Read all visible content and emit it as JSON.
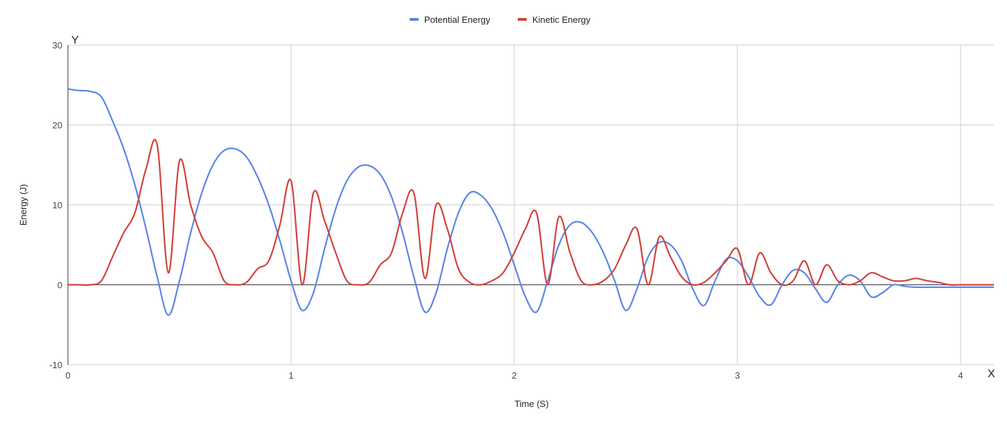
{
  "chart_data": {
    "type": "line",
    "title": "",
    "xlabel": "Time (S)",
    "ylabel": "Energy (J)",
    "x_axis_letter": "X",
    "y_axis_letter": "Y",
    "xlim": [
      0,
      4.15
    ],
    "ylim": [
      -10,
      30
    ],
    "xticks": [
      0,
      1,
      2,
      3,
      4
    ],
    "yticks": [
      -10,
      0,
      10,
      20,
      30
    ],
    "grid": true,
    "legend_position": "top-center",
    "series": [
      {
        "name": "Potential Energy",
        "color": "#5b84e4",
        "x": [
          0,
          0.05,
          0.1,
          0.15,
          0.2,
          0.25,
          0.3,
          0.35,
          0.4,
          0.45,
          0.5,
          0.55,
          0.6,
          0.65,
          0.7,
          0.75,
          0.8,
          0.85,
          0.9,
          0.95,
          1.0,
          1.05,
          1.1,
          1.15,
          1.2,
          1.25,
          1.3,
          1.35,
          1.4,
          1.45,
          1.5,
          1.55,
          1.6,
          1.65,
          1.7,
          1.75,
          1.8,
          1.85,
          1.9,
          1.95,
          2.0,
          2.05,
          2.1,
          2.15,
          2.2,
          2.25,
          2.3,
          2.35,
          2.4,
          2.45,
          2.5,
          2.55,
          2.6,
          2.65,
          2.7,
          2.75,
          2.8,
          2.85,
          2.9,
          2.95,
          3.0,
          3.05,
          3.1,
          3.15,
          3.2,
          3.25,
          3.3,
          3.35,
          3.4,
          3.45,
          3.5,
          3.55,
          3.6,
          3.65,
          3.7,
          3.75,
          3.8,
          3.85,
          3.9,
          3.95,
          4.0,
          4.05,
          4.1,
          4.15
        ],
        "y": [
          24.5,
          24.3,
          24.2,
          23.5,
          20.5,
          17.0,
          12.5,
          7.0,
          1.0,
          -3.8,
          0.5,
          6.5,
          11.5,
          15.0,
          16.8,
          17.0,
          16.0,
          13.5,
          10.0,
          5.5,
          0.5,
          -3.2,
          -1.0,
          4.5,
          9.5,
          13.0,
          14.7,
          14.9,
          13.8,
          11.0,
          6.5,
          1.0,
          -3.4,
          -1.0,
          4.5,
          9.0,
          11.5,
          11.2,
          9.5,
          6.5,
          2.5,
          -1.5,
          -3.4,
          0.5,
          5.0,
          7.5,
          7.8,
          6.5,
          4.0,
          0.5,
          -3.2,
          -0.5,
          3.5,
          5.3,
          5.0,
          3.0,
          -0.5,
          -2.6,
          0.5,
          3.2,
          3.0,
          1.0,
          -1.5,
          -2.5,
          0.0,
          1.8,
          1.5,
          -0.5,
          -2.2,
          0.0,
          1.2,
          0.5,
          -1.5,
          -1.0,
          0.0,
          -0.2,
          -0.3,
          -0.3,
          -0.3,
          -0.3,
          -0.3,
          -0.3,
          -0.3,
          -0.3
        ]
      },
      {
        "name": "Kinetic Energy",
        "color": "#d2413b",
        "x": [
          0,
          0.05,
          0.1,
          0.15,
          0.2,
          0.25,
          0.3,
          0.35,
          0.4,
          0.45,
          0.5,
          0.55,
          0.6,
          0.65,
          0.7,
          0.75,
          0.8,
          0.85,
          0.9,
          0.95,
          1.0,
          1.05,
          1.1,
          1.15,
          1.2,
          1.25,
          1.3,
          1.35,
          1.4,
          1.45,
          1.5,
          1.55,
          1.6,
          1.65,
          1.7,
          1.75,
          1.8,
          1.85,
          1.9,
          1.95,
          2.0,
          2.05,
          2.1,
          2.15,
          2.2,
          2.25,
          2.3,
          2.35,
          2.4,
          2.45,
          2.5,
          2.55,
          2.6,
          2.65,
          2.7,
          2.75,
          2.8,
          2.85,
          2.9,
          2.95,
          3.0,
          3.05,
          3.1,
          3.15,
          3.2,
          3.25,
          3.3,
          3.35,
          3.4,
          3.45,
          3.5,
          3.55,
          3.6,
          3.65,
          3.7,
          3.75,
          3.8,
          3.85,
          3.9,
          3.95,
          4.0,
          4.05,
          4.1,
          4.15
        ],
        "y": [
          0.0,
          0.0,
          0.0,
          0.5,
          3.5,
          6.5,
          9.0,
          14.5,
          17.5,
          1.5,
          15.5,
          10.0,
          6.0,
          4.0,
          0.5,
          0.0,
          0.3,
          2.0,
          3.0,
          7.5,
          13.0,
          0.0,
          11.5,
          8.0,
          4.0,
          0.5,
          0.0,
          0.3,
          2.5,
          4.0,
          9.0,
          11.5,
          0.8,
          10.0,
          7.0,
          2.0,
          0.3,
          0.0,
          0.5,
          1.5,
          4.0,
          7.0,
          9.0,
          0.0,
          8.5,
          4.0,
          0.5,
          0.0,
          0.5,
          2.0,
          5.0,
          7.0,
          0.0,
          6.0,
          3.5,
          1.0,
          0.0,
          0.3,
          1.5,
          3.0,
          4.5,
          0.0,
          4.0,
          1.5,
          0.0,
          0.5,
          3.0,
          0.0,
          2.5,
          0.5,
          0.0,
          0.5,
          1.5,
          1.0,
          0.5,
          0.5,
          0.8,
          0.5,
          0.3,
          0.0,
          0.0,
          0.0,
          0.0,
          0.0
        ]
      }
    ]
  }
}
